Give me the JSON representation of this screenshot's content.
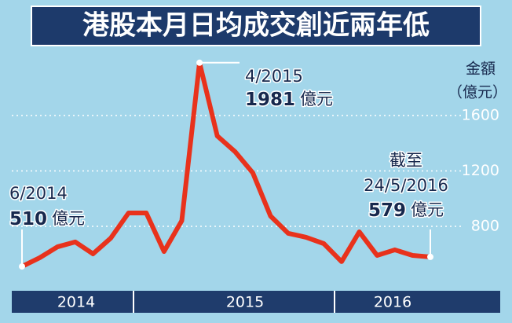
{
  "chart_data": {
    "type": "line",
    "title": "港股本月日均成交創近兩年低",
    "y_axis_label": [
      "金額",
      "（億元）"
    ],
    "categories": [
      null,
      null,
      null,
      null,
      null,
      null,
      null,
      null,
      null,
      null,
      null,
      null,
      null,
      null,
      null,
      null,
      null,
      null,
      null,
      null,
      null,
      null,
      null,
      null
    ],
    "x_axis_labels": [
      "2014",
      "2015",
      "2016"
    ],
    "series": [
      {
        "name": "日均成交",
        "color": "#e8321c",
        "values": [
          510,
          573,
          652,
          687,
          601,
          715,
          896,
          896,
          618,
          840,
          1981,
          1452,
          1339,
          1186,
          874,
          749,
          721,
          675,
          545,
          760,
          590,
          630,
          590,
          579
        ]
      }
    ],
    "ylim": [
      363,
      2065
    ],
    "yticks": [
      800,
      1200,
      1600
    ],
    "grid": true,
    "annotations": [
      {
        "text": [
          "6/2014"
        ],
        "unit": "億元"
      },
      {
        "text": [
          "4/2015"
        ],
        "unit": "億元"
      },
      {
        "text": [
          "截至",
          "24/5/2016"
        ],
        "unit": "億元"
      }
    ]
  }
}
